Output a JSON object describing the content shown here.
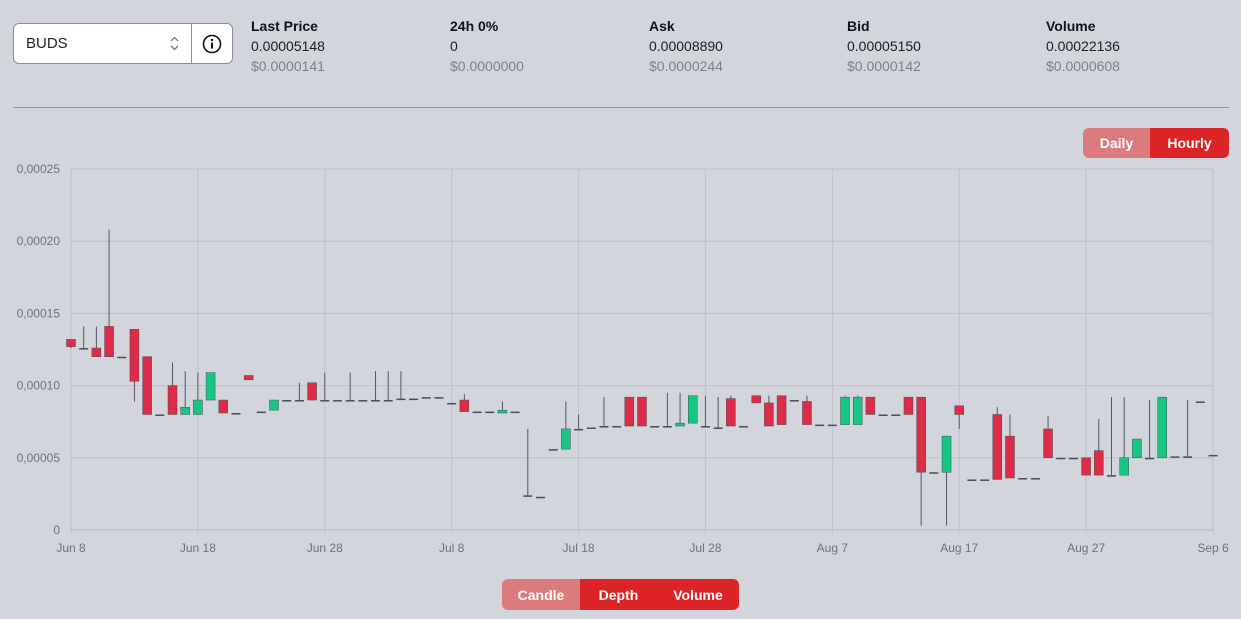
{
  "market": {
    "selected": "BUDS"
  },
  "stats": [
    {
      "label": "Last Price",
      "value": "0.00005148",
      "usd": "$0.0000141"
    },
    {
      "label": "24h 0%",
      "value": "0",
      "usd": "$0.0000000"
    },
    {
      "label": "Ask",
      "value": "0.00008890",
      "usd": "$0.0000244"
    },
    {
      "label": "Bid",
      "value": "0.00005150",
      "usd": "$0.0000142"
    },
    {
      "label": "Volume",
      "value": "0.00022136",
      "usd": "$0.0000608"
    }
  ],
  "interval": {
    "daily": "Daily",
    "hourly": "Hourly",
    "active": "Hourly"
  },
  "views": {
    "candle": "Candle",
    "depth": "Depth",
    "volume": "Volume",
    "active": "Candle"
  },
  "colors": {
    "up": "#16c784",
    "down": "#dd2c48",
    "accent": "#dc2427",
    "inactive": "#dc7b7d"
  },
  "chart_data": {
    "type": "candlestick",
    "x_axis": {
      "start": "Jun 8",
      "end": "Sep 6",
      "tick_labels": [
        "Jun 8",
        "Jun 18",
        "Jun 28",
        "Jul 8",
        "Jul 18",
        "Jul 28",
        "Aug 7",
        "Aug 17",
        "Aug 27",
        "Sep 6"
      ]
    },
    "y_axis": {
      "range": [
        0,
        0.00025
      ],
      "tick_labels": [
        "0",
        "0,00005",
        "0,00010",
        "0,00015",
        "0,00020",
        "0,00025"
      ]
    },
    "grid": true,
    "candles": [
      {
        "date": "Jun 8",
        "open": 0.000132,
        "high": 0.000132,
        "low": 0.000126,
        "close": 0.000127
      },
      {
        "date": "Jun 9",
        "open": 0.000126,
        "high": 0.000141,
        "low": 0.000126,
        "close": 0.000126
      },
      {
        "date": "Jun 10",
        "open": 0.000126,
        "high": 0.000141,
        "low": 0.00012,
        "close": 0.00012
      },
      {
        "date": "Jun 11",
        "open": 0.000141,
        "high": 0.000208,
        "low": 0.00012,
        "close": 0.00012
      },
      {
        "date": "Jun 12",
        "open": 0.00012,
        "high": 0.00012,
        "low": 0.00012,
        "close": 0.00012
      },
      {
        "date": "Jun 13",
        "open": 0.000139,
        "high": 0.000139,
        "low": 8.9e-05,
        "close": 0.000103
      },
      {
        "date": "Jun 14",
        "open": 0.00012,
        "high": 0.00012,
        "low": 8e-05,
        "close": 8e-05
      },
      {
        "date": "Jun 15",
        "open": 8e-05,
        "high": 8e-05,
        "low": 8e-05,
        "close": 8e-05
      },
      {
        "date": "Jun 16",
        "open": 0.0001,
        "high": 0.000116,
        "low": 8e-05,
        "close": 8e-05
      },
      {
        "date": "Jun 17",
        "open": 8e-05,
        "high": 0.00011,
        "low": 8e-05,
        "close": 8.5e-05
      },
      {
        "date": "Jun 18",
        "open": 8e-05,
        "high": 0.000109,
        "low": 8e-05,
        "close": 9e-05
      },
      {
        "date": "Jun 19",
        "open": 9e-05,
        "high": 0.000109,
        "low": 9e-05,
        "close": 0.000109
      },
      {
        "date": "Jun 20",
        "open": 9e-05,
        "high": 9e-05,
        "low": 8.1e-05,
        "close": 8.1e-05
      },
      {
        "date": "Jun 21",
        "open": 8.1e-05,
        "high": 8.1e-05,
        "low": 8.1e-05,
        "close": 8.1e-05
      },
      {
        "date": "Jun 22",
        "open": 0.000107,
        "high": 0.000107,
        "low": 0.000104,
        "close": 0.000104
      },
      {
        "date": "Jun 23",
        "open": 8.2e-05,
        "high": 8.2e-05,
        "low": 8.2e-05,
        "close": 8.2e-05
      },
      {
        "date": "Jun 24",
        "open": 8.3e-05,
        "high": 9e-05,
        "low": 8.3e-05,
        "close": 9e-05
      },
      {
        "date": "Jun 25",
        "open": 9e-05,
        "high": 9e-05,
        "low": 9e-05,
        "close": 9e-05
      },
      {
        "date": "Jun 26",
        "open": 9e-05,
        "high": 0.000102,
        "low": 9e-05,
        "close": 9e-05
      },
      {
        "date": "Jun 27",
        "open": 0.000102,
        "high": 0.000102,
        "low": 9e-05,
        "close": 9e-05
      },
      {
        "date": "Jun 28",
        "open": 9e-05,
        "high": 0.000109,
        "low": 9e-05,
        "close": 9e-05
      },
      {
        "date": "Jun 29",
        "open": 9e-05,
        "high": 9e-05,
        "low": 9e-05,
        "close": 9e-05
      },
      {
        "date": "Jun 30",
        "open": 9e-05,
        "high": 0.000109,
        "low": 9e-05,
        "close": 9e-05
      },
      {
        "date": "Jul 1",
        "open": 9e-05,
        "high": 9e-05,
        "low": 9e-05,
        "close": 9e-05
      },
      {
        "date": "Jul 2",
        "open": 9e-05,
        "high": 0.00011,
        "low": 9e-05,
        "close": 9e-05
      },
      {
        "date": "Jul 3",
        "open": 9e-05,
        "high": 0.00011,
        "low": 9e-05,
        "close": 9e-05
      },
      {
        "date": "Jul 4",
        "open": 9.1e-05,
        "high": 0.00011,
        "low": 9.1e-05,
        "close": 9.1e-05
      },
      {
        "date": "Jul 5",
        "open": 9.1e-05,
        "high": 9.1e-05,
        "low": 9.1e-05,
        "close": 9.1e-05
      },
      {
        "date": "Jul 6",
        "open": 9.2e-05,
        "high": 9.2e-05,
        "low": 9.2e-05,
        "close": 9.2e-05
      },
      {
        "date": "Jul 7",
        "open": 9.2e-05,
        "high": 9.2e-05,
        "low": 9.2e-05,
        "close": 9.2e-05
      },
      {
        "date": "Jul 8",
        "open": 8.8e-05,
        "high": 8.8e-05,
        "low": 8.8e-05,
        "close": 8.8e-05
      },
      {
        "date": "Jul 9",
        "open": 9e-05,
        "high": 9.4e-05,
        "low": 8.2e-05,
        "close": 8.2e-05
      },
      {
        "date": "Jul 10",
        "open": 8.2e-05,
        "high": 8.2e-05,
        "low": 8.2e-05,
        "close": 8.2e-05
      },
      {
        "date": "Jul 11",
        "open": 8.2e-05,
        "high": 8.2e-05,
        "low": 8.2e-05,
        "close": 8.2e-05
      },
      {
        "date": "Jul 12",
        "open": 8.1e-05,
        "high": 8.9e-05,
        "low": 8.1e-05,
        "close": 8.3e-05
      },
      {
        "date": "Jul 13",
        "open": 8.2e-05,
        "high": 8.2e-05,
        "low": 8.2e-05,
        "close": 8.2e-05
      },
      {
        "date": "Jul 14",
        "open": 2.4e-05,
        "high": 7e-05,
        "low": 2.3e-05,
        "close": 2.3e-05
      },
      {
        "date": "Jul 15",
        "open": 2.3e-05,
        "high": 2.3e-05,
        "low": 2.3e-05,
        "close": 2.3e-05
      },
      {
        "date": "Jul 16",
        "open": 5.6e-05,
        "high": 5.6e-05,
        "low": 5.6e-05,
        "close": 5.6e-05
      },
      {
        "date": "Jul 17",
        "open": 5.6e-05,
        "high": 8.9e-05,
        "low": 5.6e-05,
        "close": 7e-05
      },
      {
        "date": "Jul 18",
        "open": 7e-05,
        "high": 8e-05,
        "low": 7e-05,
        "close": 7e-05
      },
      {
        "date": "Jul 19",
        "open": 7.1e-05,
        "high": 7.1e-05,
        "low": 7.1e-05,
        "close": 7.1e-05
      },
      {
        "date": "Jul 20",
        "open": 7.2e-05,
        "high": 9.2e-05,
        "low": 7.2e-05,
        "close": 7.2e-05
      },
      {
        "date": "Jul 21",
        "open": 7.2e-05,
        "high": 7.2e-05,
        "low": 7.2e-05,
        "close": 7.2e-05
      },
      {
        "date": "Jul 22",
        "open": 9.2e-05,
        "high": 9.2e-05,
        "low": 7.2e-05,
        "close": 7.2e-05
      },
      {
        "date": "Jul 23",
        "open": 9.2e-05,
        "high": 9.2e-05,
        "low": 7.2e-05,
        "close": 7.2e-05
      },
      {
        "date": "Jul 24",
        "open": 7.2e-05,
        "high": 7.2e-05,
        "low": 7.2e-05,
        "close": 7.2e-05
      },
      {
        "date": "Jul 25",
        "open": 7.2e-05,
        "high": 9.5e-05,
        "low": 7.2e-05,
        "close": 7.2e-05
      },
      {
        "date": "Jul 26",
        "open": 7.2e-05,
        "high": 9.5e-05,
        "low": 7.2e-05,
        "close": 7.4e-05
      },
      {
        "date": "Jul 27",
        "open": 7.4e-05,
        "high": 9.3e-05,
        "low": 7.4e-05,
        "close": 9.3e-05
      },
      {
        "date": "Jul 28",
        "open": 7.2e-05,
        "high": 9.3e-05,
        "low": 7.1e-05,
        "close": 7.1e-05
      },
      {
        "date": "Jul 29",
        "open": 7.1e-05,
        "high": 9.2e-05,
        "low": 7.1e-05,
        "close": 7.1e-05
      },
      {
        "date": "Jul 30",
        "open": 9.1e-05,
        "high": 9.3e-05,
        "low": 7.2e-05,
        "close": 7.2e-05
      },
      {
        "date": "Jul 31",
        "open": 7.2e-05,
        "high": 7.2e-05,
        "low": 7.2e-05,
        "close": 7.2e-05
      },
      {
        "date": "Aug 1",
        "open": 9.3e-05,
        "high": 9.3e-05,
        "low": 8.8e-05,
        "close": 8.8e-05
      },
      {
        "date": "Aug 2",
        "open": 8.8e-05,
        "high": 9.3e-05,
        "low": 7.2e-05,
        "close": 7.2e-05
      },
      {
        "date": "Aug 3",
        "open": 9.3e-05,
        "high": 9.3e-05,
        "low": 7.3e-05,
        "close": 7.3e-05
      },
      {
        "date": "Aug 4",
        "open": 9e-05,
        "high": 9e-05,
        "low": 9e-05,
        "close": 9e-05
      },
      {
        "date": "Aug 5",
        "open": 8.9e-05,
        "high": 9.3e-05,
        "low": 7.3e-05,
        "close": 7.3e-05
      },
      {
        "date": "Aug 6",
        "open": 7.3e-05,
        "high": 7.3e-05,
        "low": 7.3e-05,
        "close": 7.3e-05
      },
      {
        "date": "Aug 7",
        "open": 7.3e-05,
        "high": 7.3e-05,
        "low": 7.3e-05,
        "close": 7.3e-05
      },
      {
        "date": "Aug 8",
        "open": 7.3e-05,
        "high": 9.3e-05,
        "low": 7.3e-05,
        "close": 9.2e-05
      },
      {
        "date": "Aug 9",
        "open": 7.3e-05,
        "high": 9.3e-05,
        "low": 7.3e-05,
        "close": 9.2e-05
      },
      {
        "date": "Aug 10",
        "open": 9.2e-05,
        "high": 9.2e-05,
        "low": 8e-05,
        "close": 8e-05
      },
      {
        "date": "Aug 11",
        "open": 8e-05,
        "high": 8e-05,
        "low": 8e-05,
        "close": 8e-05
      },
      {
        "date": "Aug 12",
        "open": 8e-05,
        "high": 8e-05,
        "low": 8e-05,
        "close": 8e-05
      },
      {
        "date": "Aug 13",
        "open": 9.2e-05,
        "high": 9.2e-05,
        "low": 8e-05,
        "close": 8e-05
      },
      {
        "date": "Aug 14",
        "open": 9.2e-05,
        "high": 9.2e-05,
        "low": 3e-06,
        "close": 4e-05
      },
      {
        "date": "Aug 15",
        "open": 4e-05,
        "high": 4e-05,
        "low": 4e-05,
        "close": 4e-05
      },
      {
        "date": "Aug 16",
        "open": 4e-05,
        "high": 6.5e-05,
        "low": 3e-06,
        "close": 6.5e-05
      },
      {
        "date": "Aug 17",
        "open": 8.6e-05,
        "high": 8.6e-05,
        "low": 7e-05,
        "close": 8e-05
      },
      {
        "date": "Aug 18",
        "open": 3.5e-05,
        "high": 3.5e-05,
        "low": 3.5e-05,
        "close": 3.5e-05
      },
      {
        "date": "Aug 19",
        "open": 3.5e-05,
        "high": 3.5e-05,
        "low": 3.5e-05,
        "close": 3.5e-05
      },
      {
        "date": "Aug 20",
        "open": 8e-05,
        "high": 8.5e-05,
        "low": 3.5e-05,
        "close": 3.5e-05
      },
      {
        "date": "Aug 21",
        "open": 6.5e-05,
        "high": 8e-05,
        "low": 3.6e-05,
        "close": 3.6e-05
      },
      {
        "date": "Aug 22",
        "open": 3.6e-05,
        "high": 3.6e-05,
        "low": 3.6e-05,
        "close": 3.6e-05
      },
      {
        "date": "Aug 23",
        "open": 3.6e-05,
        "high": 3.6e-05,
        "low": 3.6e-05,
        "close": 3.6e-05
      },
      {
        "date": "Aug 24",
        "open": 7e-05,
        "high": 7.9e-05,
        "low": 5e-05,
        "close": 5e-05
      },
      {
        "date": "Aug 25",
        "open": 5e-05,
        "high": 5e-05,
        "low": 5e-05,
        "close": 5e-05
      },
      {
        "date": "Aug 26",
        "open": 5e-05,
        "high": 5e-05,
        "low": 5e-05,
        "close": 5e-05
      },
      {
        "date": "Aug 27",
        "open": 5e-05,
        "high": 5e-05,
        "low": 3.8e-05,
        "close": 3.8e-05
      },
      {
        "date": "Aug 28",
        "open": 5.5e-05,
        "high": 7.7e-05,
        "low": 3.8e-05,
        "close": 3.8e-05
      },
      {
        "date": "Aug 29",
        "open": 3.8e-05,
        "high": 9.2e-05,
        "low": 3.8e-05,
        "close": 3.8e-05
      },
      {
        "date": "Aug 30",
        "open": 3.8e-05,
        "high": 9.2e-05,
        "low": 3.8e-05,
        "close": 5e-05
      },
      {
        "date": "Aug 31",
        "open": 5e-05,
        "high": 6.3e-05,
        "low": 5e-05,
        "close": 6.3e-05
      },
      {
        "date": "Sep 1",
        "open": 5e-05,
        "high": 9e-05,
        "low": 5e-05,
        "close": 5e-05
      },
      {
        "date": "Sep 2",
        "open": 5e-05,
        "high": 9.2e-05,
        "low": 5e-05,
        "close": 9.2e-05
      },
      {
        "date": "Sep 3",
        "open": 5.1e-05,
        "high": 5.1e-05,
        "low": 5.1e-05,
        "close": 5.1e-05
      },
      {
        "date": "Sep 4",
        "open": 5.1e-05,
        "high": 9e-05,
        "low": 5.1e-05,
        "close": 5.1e-05
      },
      {
        "date": "Sep 5",
        "open": 8.9e-05,
        "high": 8.9e-05,
        "low": 8.9e-05,
        "close": 8.9e-05
      },
      {
        "date": "Sep 6",
        "open": 5.2e-05,
        "high": 5.2e-05,
        "low": 5.2e-05,
        "close": 5.2e-05
      }
    ]
  }
}
